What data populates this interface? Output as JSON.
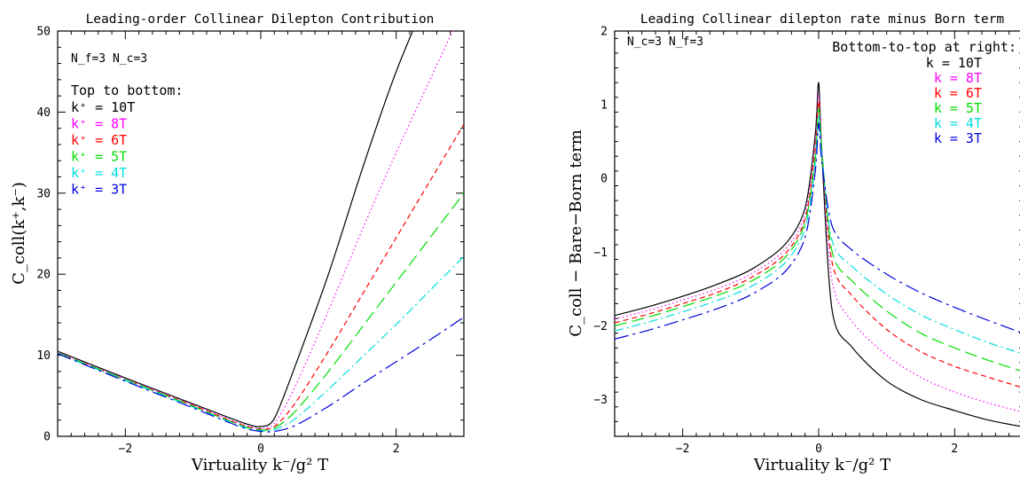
{
  "chart_data": [
    {
      "type": "line",
      "title": "Leading-order Collinear Dilepton Contribution",
      "xlabel": "Virtuality k⁻/g² T",
      "ylabel": "C_coll(k⁺,k⁻)",
      "xlim": [
        -3,
        3
      ],
      "ylim": [
        0,
        50
      ],
      "xticks": [
        -2,
        0,
        2
      ],
      "yticks": [
        0,
        10,
        20,
        30,
        40,
        50
      ],
      "params_text": "N_f=3 N_c=3",
      "legend_header": "Top to bottom:",
      "legend_placement": "top-left",
      "series": [
        {
          "name": "k⁺ = 10T",
          "color": "#000000",
          "dash": "solid",
          "x": [
            -3,
            -2,
            -1,
            -0.5,
            -0.2,
            0,
            0.2,
            0.5,
            1,
            1.5,
            2,
            2.5,
            3
          ],
          "y": [
            10.5,
            7.2,
            4.0,
            2.4,
            1.5,
            1.2,
            2.2,
            8.5,
            20,
            33,
            45,
            55,
            65
          ]
        },
        {
          "name": "k⁺ = 8T",
          "color": "#ff00ff",
          "dash": "dotted",
          "x": [
            -3,
            -2,
            -1,
            -0.5,
            -0.2,
            0,
            0.2,
            0.5,
            1,
            1.5,
            2,
            2.5,
            3
          ],
          "y": [
            10.4,
            7.1,
            3.9,
            2.2,
            1.3,
            1.0,
            1.6,
            6.0,
            15.5,
            25.5,
            35.0,
            44.0,
            53.0
          ]
        },
        {
          "name": "k⁺ = 6T",
          "color": "#ff0000",
          "dash": "dashed",
          "x": [
            -3,
            -2,
            -1,
            -0.5,
            -0.2,
            0,
            0.2,
            0.5,
            1,
            1.5,
            2,
            2.5,
            3
          ],
          "y": [
            10.3,
            7.0,
            3.8,
            2.1,
            1.2,
            0.9,
            1.2,
            4.0,
            10.5,
            17.5,
            24.5,
            31.5,
            38.5
          ]
        },
        {
          "name": "k⁺ = 5T",
          "color": "#00dd00",
          "dash": "longdash",
          "x": [
            -3,
            -2,
            -1,
            -0.5,
            -0.2,
            0,
            0.2,
            0.5,
            1,
            1.5,
            2,
            2.5,
            3
          ],
          "y": [
            10.3,
            7.0,
            3.7,
            2.0,
            1.1,
            0.8,
            1.0,
            3.0,
            8.0,
            13.5,
            19.0,
            24.5,
            30.0
          ]
        },
        {
          "name": "k⁺ = 4T",
          "color": "#00dddd",
          "dash": "dashdot",
          "x": [
            -3,
            -2,
            -1,
            -0.5,
            -0.2,
            0,
            0.2,
            0.5,
            1,
            1.5,
            2,
            2.5,
            3
          ],
          "y": [
            10.2,
            6.9,
            3.6,
            1.9,
            1.0,
            0.7,
            0.8,
            2.1,
            5.8,
            9.8,
            13.8,
            18.0,
            22.2
          ]
        },
        {
          "name": "k⁺ = 3T",
          "color": "#0000dd",
          "dash": "longdashdot",
          "x": [
            -3,
            -2,
            -1,
            -0.5,
            -0.2,
            0,
            0.2,
            0.5,
            1,
            1.5,
            2,
            2.5,
            3
          ],
          "y": [
            10.2,
            6.8,
            3.5,
            1.8,
            0.9,
            0.6,
            0.6,
            1.3,
            3.7,
            6.5,
            9.2,
            11.9,
            14.7
          ]
        }
      ]
    },
    {
      "type": "line",
      "title": "Leading Collinear dilepton rate minus Born term",
      "xlabel": "Virtuality k⁻/g² T",
      "ylabel": "C_coll − Bare−Born term",
      "xlim": [
        -3,
        3
      ],
      "ylim": [
        -3.5,
        2
      ],
      "xticks": [
        -2,
        0,
        2
      ],
      "yticks": [
        -3,
        -2,
        -1,
        0,
        1,
        2
      ],
      "params_text": "N_c=3 N_f=3",
      "legend_header": "Bottom-to-top at right:",
      "legend_placement": "top-right",
      "series": [
        {
          "name": "k = 10T",
          "color": "#000000",
          "dash": "solid",
          "x": [
            -3,
            -2.5,
            -2,
            -1.5,
            -1,
            -0.5,
            -0.2,
            -0.05,
            0,
            0.05,
            0.2,
            0.5,
            1,
            1.5,
            2,
            2.5,
            3
          ],
          "y": [
            -1.86,
            -1.74,
            -1.6,
            -1.44,
            -1.24,
            -0.9,
            -0.4,
            0.6,
            1.3,
            0.3,
            -1.8,
            -2.3,
            -2.75,
            -3.0,
            -3.15,
            -3.28,
            -3.37
          ]
        },
        {
          "name": "k = 8T",
          "color": "#ff00ff",
          "dash": "dotted",
          "x": [
            -3,
            -2.5,
            -2,
            -1.5,
            -1,
            -0.5,
            -0.2,
            -0.05,
            0,
            0.05,
            0.2,
            0.5,
            1,
            1.5,
            2,
            2.5,
            3
          ],
          "y": [
            -1.91,
            -1.79,
            -1.65,
            -1.5,
            -1.3,
            -0.97,
            -0.48,
            0.5,
            1.15,
            0.35,
            -1.4,
            -1.95,
            -2.4,
            -2.7,
            -2.9,
            -3.05,
            -3.17
          ]
        },
        {
          "name": "k = 6T",
          "color": "#ff0000",
          "dash": "dashed",
          "x": [
            -3,
            -2.5,
            -2,
            -1.5,
            -1,
            -0.5,
            -0.2,
            -0.05,
            0,
            0.05,
            0.2,
            0.5,
            1,
            1.5,
            2,
            2.5,
            3
          ],
          "y": [
            -1.96,
            -1.84,
            -1.7,
            -1.55,
            -1.35,
            -1.03,
            -0.55,
            0.4,
            1.05,
            0.35,
            -1.15,
            -1.6,
            -2.05,
            -2.35,
            -2.55,
            -2.7,
            -2.84
          ]
        },
        {
          "name": "k = 5T",
          "color": "#00dd00",
          "dash": "longdash",
          "x": [
            -3,
            -2.5,
            -2,
            -1.5,
            -1,
            -0.5,
            -0.2,
            -0.05,
            0,
            0.05,
            0.2,
            0.5,
            1,
            1.5,
            2,
            2.5,
            3
          ],
          "y": [
            -2.0,
            -1.88,
            -1.74,
            -1.59,
            -1.4,
            -1.08,
            -0.6,
            0.3,
            0.95,
            0.35,
            -1.0,
            -1.4,
            -1.8,
            -2.1,
            -2.3,
            -2.47,
            -2.62
          ]
        },
        {
          "name": "k = 4T",
          "color": "#00dddd",
          "dash": "dashdot",
          "x": [
            -3,
            -2.5,
            -2,
            -1.5,
            -1,
            -0.5,
            -0.2,
            -0.05,
            0,
            0.05,
            0.2,
            0.5,
            1,
            1.5,
            2,
            2.5,
            3
          ],
          "y": [
            -2.07,
            -1.95,
            -1.81,
            -1.66,
            -1.47,
            -1.15,
            -0.68,
            0.2,
            0.85,
            0.3,
            -0.85,
            -1.2,
            -1.57,
            -1.85,
            -2.05,
            -2.23,
            -2.38
          ]
        },
        {
          "name": "k = 3T",
          "color": "#0000dd",
          "dash": "longdashdot",
          "x": [
            -3,
            -2.5,
            -2,
            -1.5,
            -1,
            -0.5,
            -0.2,
            -0.05,
            0,
            0.05,
            0.2,
            0.5,
            1,
            1.5,
            2,
            2.5,
            3
          ],
          "y": [
            -2.18,
            -2.06,
            -1.92,
            -1.77,
            -1.58,
            -1.27,
            -0.8,
            0.1,
            0.75,
            0.2,
            -0.65,
            -0.98,
            -1.3,
            -1.55,
            -1.75,
            -1.93,
            -2.1
          ]
        }
      ]
    }
  ]
}
